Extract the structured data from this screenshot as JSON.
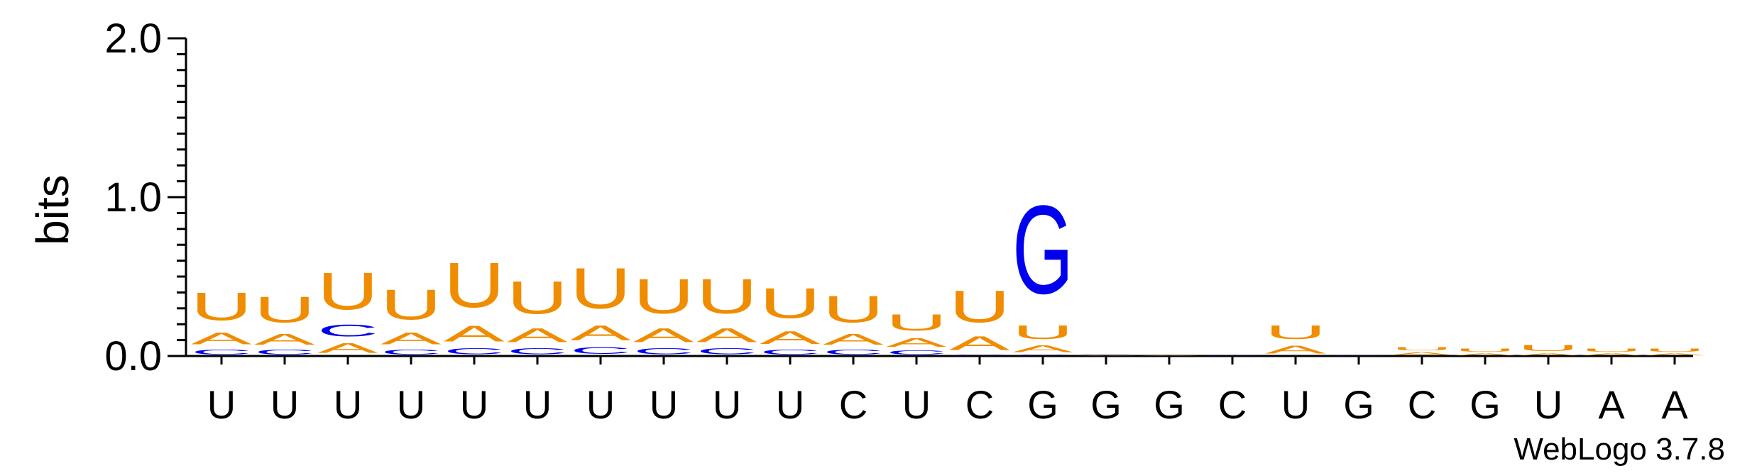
{
  "footer": {
    "version": "WebLogo 3.7.8"
  },
  "colors": {
    "A": "#f08c00",
    "U": "#f08c00",
    "C": "#0000ee",
    "G": "#0000ee",
    "axis": "#000000"
  },
  "chart_data": {
    "type": "sequence-logo",
    "ylabel": "bits",
    "ylim": [
      0,
      2.0
    ],
    "yticks": [
      "0.0",
      "1.0",
      "2.0"
    ],
    "positions": [
      {
        "label": "U",
        "letters": [
          {
            "base": "C",
            "bits": 0.05
          },
          {
            "base": "A",
            "bits": 0.12
          },
          {
            "base": "U",
            "bits": 0.28
          }
        ]
      },
      {
        "label": "U",
        "letters": [
          {
            "base": "C",
            "bits": 0.05
          },
          {
            "base": "A",
            "bits": 0.11
          },
          {
            "base": "U",
            "bits": 0.26
          }
        ]
      },
      {
        "label": "U",
        "letters": [
          {
            "base": "A",
            "bits": 0.1
          },
          {
            "base": "C",
            "bits": 0.12
          },
          {
            "base": "U",
            "bits": 0.37
          }
        ]
      },
      {
        "label": "U",
        "letters": [
          {
            "base": "C",
            "bits": 0.05
          },
          {
            "base": "A",
            "bits": 0.12
          },
          {
            "base": "U",
            "bits": 0.3
          }
        ]
      },
      {
        "label": "U",
        "letters": [
          {
            "base": "C",
            "bits": 0.06
          },
          {
            "base": "A",
            "bits": 0.16
          },
          {
            "base": "U",
            "bits": 0.45
          }
        ]
      },
      {
        "label": "U",
        "letters": [
          {
            "base": "C",
            "bits": 0.06
          },
          {
            "base": "A",
            "bits": 0.14
          },
          {
            "base": "U",
            "bits": 0.33
          }
        ]
      },
      {
        "label": "U",
        "letters": [
          {
            "base": "C",
            "bits": 0.07
          },
          {
            "base": "A",
            "bits": 0.15
          },
          {
            "base": "U",
            "bits": 0.41
          }
        ]
      },
      {
        "label": "U",
        "letters": [
          {
            "base": "C",
            "bits": 0.06
          },
          {
            "base": "A",
            "bits": 0.14
          },
          {
            "base": "U",
            "bits": 0.35
          }
        ]
      },
      {
        "label": "U",
        "letters": [
          {
            "base": "C",
            "bits": 0.06
          },
          {
            "base": "A",
            "bits": 0.14
          },
          {
            "base": "U",
            "bits": 0.35
          }
        ]
      },
      {
        "label": "U",
        "letters": [
          {
            "base": "C",
            "bits": 0.05
          },
          {
            "base": "A",
            "bits": 0.13
          },
          {
            "base": "U",
            "bits": 0.3
          }
        ]
      },
      {
        "label": "C",
        "letters": [
          {
            "base": "C",
            "bits": 0.05
          },
          {
            "base": "A",
            "bits": 0.11
          },
          {
            "base": "U",
            "bits": 0.27
          }
        ]
      },
      {
        "label": "U",
        "letters": [
          {
            "base": "C",
            "bits": 0.04
          },
          {
            "base": "A",
            "bits": 0.09
          },
          {
            "base": "U",
            "bits": 0.16
          }
        ]
      },
      {
        "label": "C",
        "letters": [
          {
            "base": "C",
            "bits": 0.01
          },
          {
            "base": "A",
            "bits": 0.14
          },
          {
            "base": "U",
            "bits": 0.32
          }
        ]
      },
      {
        "label": "G",
        "letters": [
          {
            "base": "C",
            "bits": 0.01
          },
          {
            "base": "A",
            "bits": 0.07
          },
          {
            "base": "U",
            "bits": 0.14
          },
          {
            "base": "G",
            "bits": 0.89
          }
        ]
      },
      {
        "label": "G",
        "letters": [
          {
            "base": "A",
            "bits": 0.005
          },
          {
            "base": "G",
            "bits": 0.005
          }
        ]
      },
      {
        "label": "G",
        "letters": [
          {
            "base": "A",
            "bits": 0.005
          }
        ]
      },
      {
        "label": "C",
        "letters": [
          {
            "base": "C",
            "bits": 0.005
          }
        ]
      },
      {
        "label": "U",
        "letters": [
          {
            "base": "A",
            "bits": 0.08
          },
          {
            "base": "U",
            "bits": 0.14
          }
        ]
      },
      {
        "label": "G",
        "letters": [
          {
            "base": "C",
            "bits": 0.005
          }
        ]
      },
      {
        "label": "C",
        "letters": [
          {
            "base": "A",
            "bits": 0.03
          },
          {
            "base": "U",
            "bits": 0.03
          }
        ]
      },
      {
        "label": "G",
        "letters": [
          {
            "base": "A",
            "bits": 0.02
          },
          {
            "base": "U",
            "bits": 0.03
          }
        ]
      },
      {
        "label": "U",
        "letters": [
          {
            "base": "A",
            "bits": 0.02
          },
          {
            "base": "U",
            "bits": 0.06
          }
        ]
      },
      {
        "label": "A",
        "letters": [
          {
            "base": "A",
            "bits": 0.02
          },
          {
            "base": "U",
            "bits": 0.03
          }
        ]
      },
      {
        "label": "A",
        "letters": [
          {
            "base": "A",
            "bits": 0.02
          },
          {
            "base": "U",
            "bits": 0.03
          }
        ]
      }
    ]
  }
}
